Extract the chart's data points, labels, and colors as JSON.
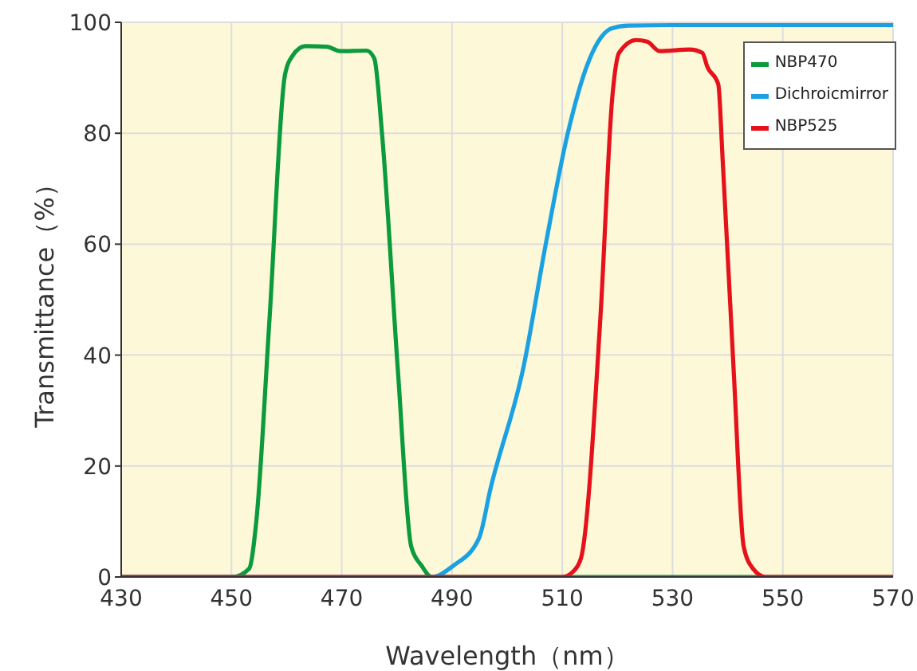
{
  "chart_data": {
    "type": "line",
    "xlabel": "Wavelength（nm）",
    "ylabel": "Transmittance（%）",
    "xlim": [
      430,
      570
    ],
    "ylim": [
      0,
      100
    ],
    "xticks": [
      430,
      450,
      470,
      490,
      510,
      530,
      550,
      570
    ],
    "yticks": [
      0,
      20,
      40,
      60,
      80,
      100
    ],
    "grid": true,
    "legend": "top right",
    "marker": "none",
    "line_style": "solid",
    "series": [
      {
        "name": "NBP470",
        "color": "#0b9a3c",
        "x": [
          430,
          450.2,
          453.2,
          454.5,
          456.9,
          459.7,
          461.1,
          463.4,
          467.3,
          469.7,
          474.5,
          475.9,
          477.3,
          480.2,
          482.6,
          484.5,
          486.3,
          510,
          547,
          570
        ],
        "values": [
          0,
          0,
          1.5,
          10,
          46.5,
          90.5,
          94,
          95.7,
          95.6,
          94.8,
          94.9,
          93.5,
          80,
          37,
          5.5,
          2,
          0,
          0,
          0,
          0
        ]
      },
      {
        "name": "Dichroicmirror",
        "color": "#1ba1e2",
        "x": [
          430,
          486.3,
          490.2,
          494.9,
          497,
          503,
          507,
          511,
          514.6,
          516.5,
          518.9,
          522,
          530,
          570
        ],
        "values": [
          0,
          0,
          2,
          7,
          16,
          38,
          60,
          80,
          92.5,
          96.5,
          98.9,
          99.4,
          99.5,
          99.5
        ]
      },
      {
        "name": "NBP525",
        "color": "#e5121c",
        "x": [
          430,
          510,
          512,
          513.4,
          516.9,
          519.1,
          520.3,
          523.4,
          525.4,
          527.7,
          533.1,
          535.4,
          536.3,
          538.3,
          539.1,
          541.1,
          542.9,
          544.6,
          546.9,
          570
        ],
        "values": [
          0,
          0,
          1,
          3.4,
          46.5,
          86.8,
          94.5,
          96.8,
          96.5,
          94.8,
          95.1,
          94.5,
          92,
          88.8,
          75,
          37,
          5.5,
          1.5,
          0,
          0
        ]
      }
    ]
  }
}
